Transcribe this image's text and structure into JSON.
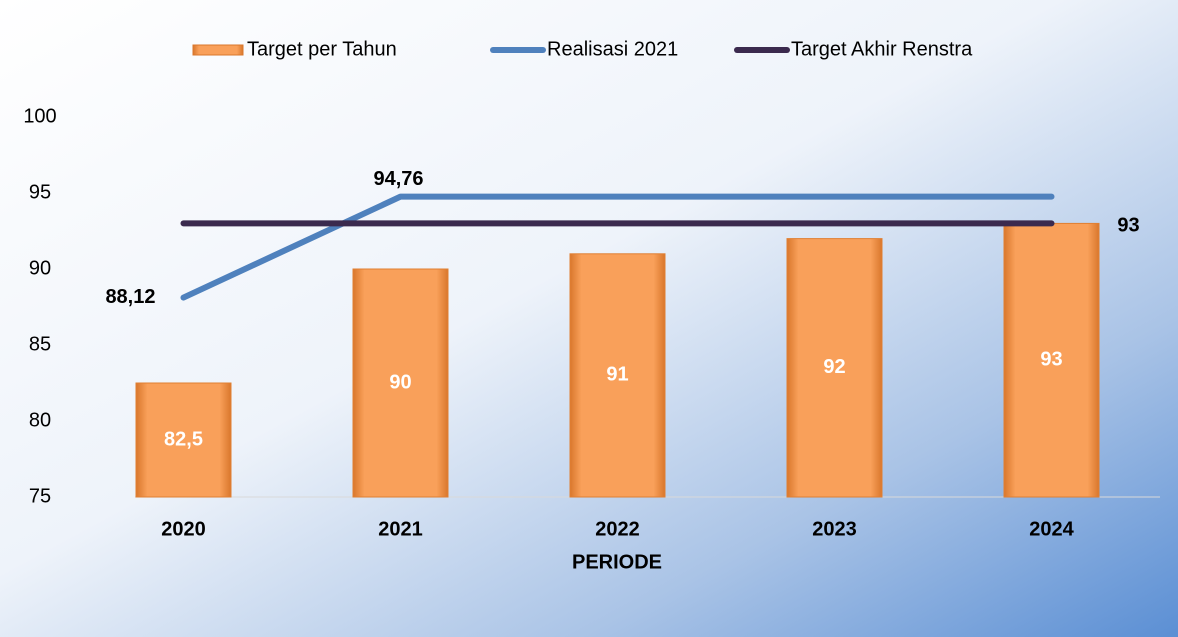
{
  "chart_data": {
    "type": "bar",
    "x_label": "PERIODE",
    "categories": [
      "2020",
      "2021",
      "2022",
      "2023",
      "2024"
    ],
    "series": [
      {
        "name": "Target per Tahun",
        "type": "bar",
        "color": "#f79646",
        "values": [
          82.5,
          90,
          91,
          92,
          93
        ],
        "value_labels": [
          "82,5",
          "90",
          "91",
          "92",
          "93"
        ]
      },
      {
        "name": "Realisasi 2021",
        "type": "line",
        "color": "#4f81bd",
        "values": [
          88.12,
          94.76,
          94.76,
          94.76,
          94.76
        ],
        "value_labels": [
          "88,12",
          "94,76",
          null,
          null,
          null
        ]
      },
      {
        "name": "Target Akhir Renstra",
        "type": "line",
        "color": "#3b2a4e",
        "values": [
          93,
          93,
          93,
          93,
          93
        ],
        "value_labels": [
          null,
          null,
          null,
          null,
          "93"
        ]
      }
    ],
    "ylim": [
      75,
      100
    ],
    "yticks": [
      75,
      80,
      85,
      90,
      95,
      100
    ],
    "legend": "top"
  }
}
